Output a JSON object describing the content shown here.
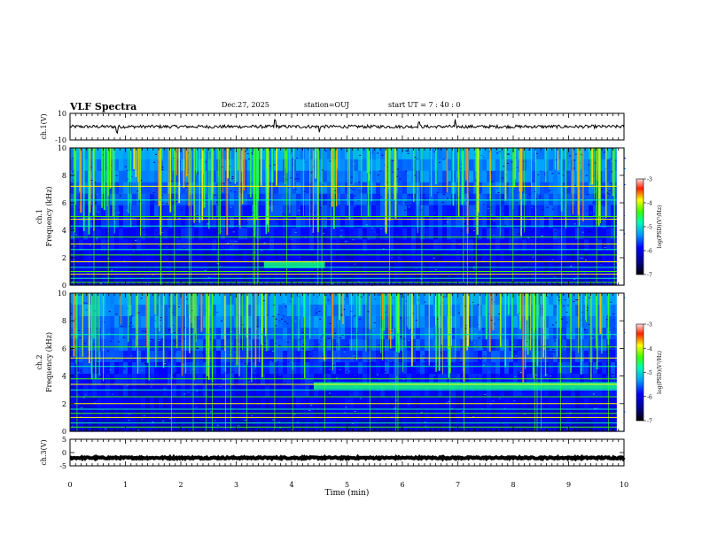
{
  "header": {
    "title": "VLF Spectra",
    "date": "Dec.27, 2025",
    "station": "station=OUJ",
    "start_ut": "start  UT  =   7 : 40 : 0"
  },
  "chart_data": [
    {
      "type": "line",
      "id": "ch1_waveform",
      "ylabel": "ch.1(V)",
      "ylim": [
        -10,
        10
      ],
      "yticks": [
        "10",
        "-10"
      ],
      "xlim": [
        0,
        10
      ],
      "baseline": 0,
      "noise_amplitude": 1.2,
      "spikes": [
        0.85,
        3.7,
        4.5,
        6.3,
        6.95
      ]
    },
    {
      "type": "heatmap",
      "id": "ch1_spectrogram",
      "ylabel": "Frequency (kHz)",
      "panel_label": "ch.1",
      "ylim": [
        0,
        10
      ],
      "yticks": [
        "0",
        "2",
        "4",
        "6",
        "8",
        "10"
      ],
      "xlim": [
        0,
        10
      ],
      "colorbar": {
        "label": "log(PSD)(V²/Hz)",
        "range": [
          -7,
          -3
        ],
        "ticks": [
          "-3",
          "-4",
          "-5",
          "-6",
          "-7"
        ]
      },
      "hum_lines_khz": [
        0.2,
        0.5,
        0.8,
        1.0,
        1.3,
        1.7,
        2.2,
        2.6,
        3.0,
        3.5,
        4.3,
        4.8,
        5.0,
        6.2,
        7.2
      ],
      "bright_band": {
        "freq_khz": 1.5,
        "t_start": 3.5,
        "t_end": 4.6
      }
    },
    {
      "type": "heatmap",
      "id": "ch2_spectrogram",
      "ylabel": "Frequency (kHz)",
      "panel_label": "ch.2",
      "ylim": [
        0,
        10
      ],
      "yticks": [
        "0",
        "2",
        "4",
        "6",
        "8",
        "10"
      ],
      "xlim": [
        0,
        10
      ],
      "colorbar": {
        "label": "log(PSD)(V²/Hz)",
        "range": [
          -7,
          -3
        ],
        "ticks": [
          "-3",
          "-4",
          "-5",
          "-6",
          "-7"
        ]
      },
      "hum_lines_khz": [
        0.3,
        0.6,
        1.0,
        1.3,
        1.6,
        2.0,
        2.5,
        3.0,
        3.4,
        3.8,
        4.7,
        5.3,
        6.1,
        7.0
      ],
      "bright_band": {
        "freq_khz": 3.3,
        "t_start": 4.4,
        "t_end": 9.9
      }
    },
    {
      "type": "line",
      "id": "ch3_waveform",
      "ylabel": "ch.3(V)",
      "ylim": [
        -5,
        5
      ],
      "yticks": [
        "5",
        "0",
        "-5"
      ],
      "xlim": [
        0,
        10
      ],
      "baseline": -2,
      "noise_amplitude": 0.3,
      "xlabel": "Time (min)",
      "xticks": [
        "0",
        "1",
        "2",
        "3",
        "4",
        "5",
        "6",
        "7",
        "8",
        "9",
        "10"
      ]
    }
  ],
  "colors": {
    "axis": "#000000",
    "background": "#ffffff"
  }
}
